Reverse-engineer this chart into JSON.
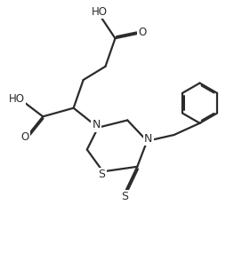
{
  "background_color": "#ffffff",
  "line_color": "#2b2b2b",
  "line_width": 1.6,
  "font_size": 8.5,
  "fig_width": 2.81,
  "fig_height": 2.93,
  "dpi": 100,
  "xlim": [
    0,
    10
  ],
  "ylim": [
    0,
    10
  ]
}
